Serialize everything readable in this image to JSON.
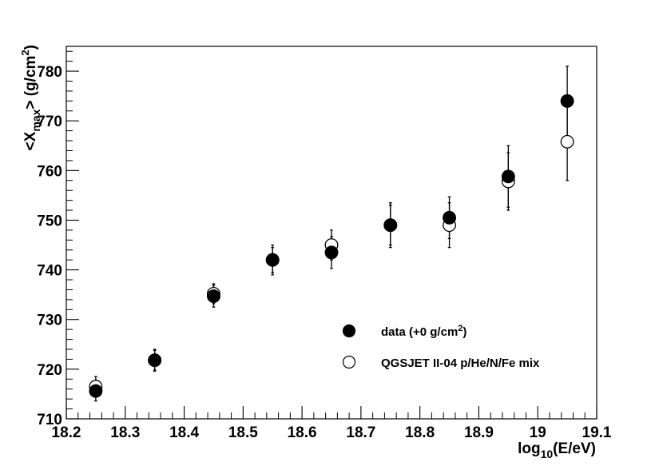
{
  "chart_data": {
    "type": "scatter",
    "xlabel": "log10(E/eV)",
    "ylabel": "<Xmax> (g/cm2)",
    "xlim": [
      18.2,
      19.1
    ],
    "ylim": [
      710,
      785
    ],
    "x_ticks": [
      "18.2",
      "18.3",
      "18.4",
      "18.5",
      "18.6",
      "18.7",
      "18.8",
      "18.9",
      "19",
      "19.1"
    ],
    "y_ticks": [
      "710",
      "720",
      "730",
      "740",
      "750",
      "760",
      "770",
      "780"
    ],
    "legend_placement": "lower-right",
    "grid": false,
    "series": [
      {
        "name": "data (+0 g/cm2)",
        "marker": "filled-circle",
        "color": "#000000",
        "points": [
          {
            "x": 18.25,
            "y": 715.6,
            "err_lo": 2.0,
            "err_hi": 2.0
          },
          {
            "x": 18.35,
            "y": 721.8,
            "err_lo": 2.2,
            "err_hi": 2.2
          },
          {
            "x": 18.45,
            "y": 734.7,
            "err_lo": 2.2,
            "err_hi": 2.2
          },
          {
            "x": 18.55,
            "y": 742.0,
            "err_lo": 3.0,
            "err_hi": 3.0
          },
          {
            "x": 18.65,
            "y": 743.5,
            "err_lo": 3.2,
            "err_hi": 3.2
          },
          {
            "x": 18.75,
            "y": 749.0,
            "err_lo": 4.5,
            "err_hi": 4.5
          },
          {
            "x": 18.85,
            "y": 750.5,
            "err_lo": 4.2,
            "err_hi": 4.2
          },
          {
            "x": 18.95,
            "y": 758.8,
            "err_lo": 6.2,
            "err_hi": 6.2
          },
          {
            "x": 19.05,
            "y": 774.0,
            "err_lo": 7.0,
            "err_hi": 7.0
          }
        ]
      },
      {
        "name": "QGSJET II-04 p/He/N/Fe mix",
        "marker": "open-circle",
        "color": "#000000",
        "points": [
          {
            "x": 18.25,
            "y": 716.5,
            "err_lo": 2.0,
            "err_hi": 2.0
          },
          {
            "x": 18.35,
            "y": 721.8,
            "err_lo": 2.0,
            "err_hi": 2.0
          },
          {
            "x": 18.45,
            "y": 735.2,
            "err_lo": 2.0,
            "err_hi": 2.0
          },
          {
            "x": 18.55,
            "y": 742.0,
            "err_lo": 2.5,
            "err_hi": 2.5
          },
          {
            "x": 18.65,
            "y": 745.0,
            "err_lo": 3.0,
            "err_hi": 3.0
          },
          {
            "x": 18.75,
            "y": 749.0,
            "err_lo": 4.0,
            "err_hi": 4.0
          },
          {
            "x": 18.85,
            "y": 749.0,
            "err_lo": 4.5,
            "err_hi": 4.5
          },
          {
            "x": 18.95,
            "y": 757.8,
            "err_lo": 5.8,
            "err_hi": 5.8
          },
          {
            "x": 19.05,
            "y": 765.8,
            "err_lo": 7.8,
            "err_hi": 7.8
          }
        ]
      }
    ]
  }
}
